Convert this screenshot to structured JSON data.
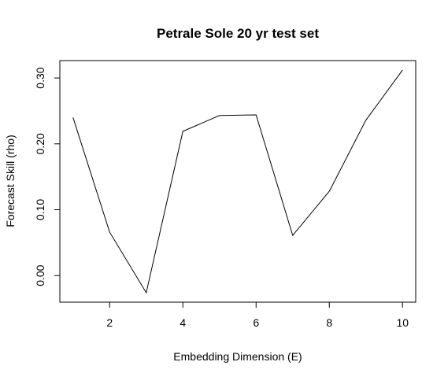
{
  "chart_data": {
    "type": "line",
    "title": "Petrale Sole 20 yr test set",
    "xlabel": "Embedding Dimension (E)",
    "ylabel": "Forecast Skill (rho)",
    "x": [
      1,
      2,
      3,
      4,
      5,
      6,
      7,
      8,
      9,
      10
    ],
    "series": [
      {
        "values": [
          0.24,
          0.066,
          -0.026,
          0.219,
          0.243,
          0.244,
          0.061,
          0.128,
          0.236,
          0.312
        ]
      }
    ],
    "xlim": [
      0.64,
      10.36
    ],
    "ylim": [
      -0.0404,
      0.3264
    ],
    "x_ticks": [
      2,
      4,
      6,
      8,
      10
    ],
    "x_tick_labels": [
      "2",
      "4",
      "6",
      "8",
      "10"
    ],
    "y_ticks": [
      0.0,
      0.1,
      0.2,
      0.3
    ],
    "y_tick_labels": [
      "0.00",
      "0.10",
      "0.20",
      "0.30"
    ],
    "grid": false,
    "legend": "none",
    "line_color": "#000000",
    "background_color": "#ffffff"
  }
}
